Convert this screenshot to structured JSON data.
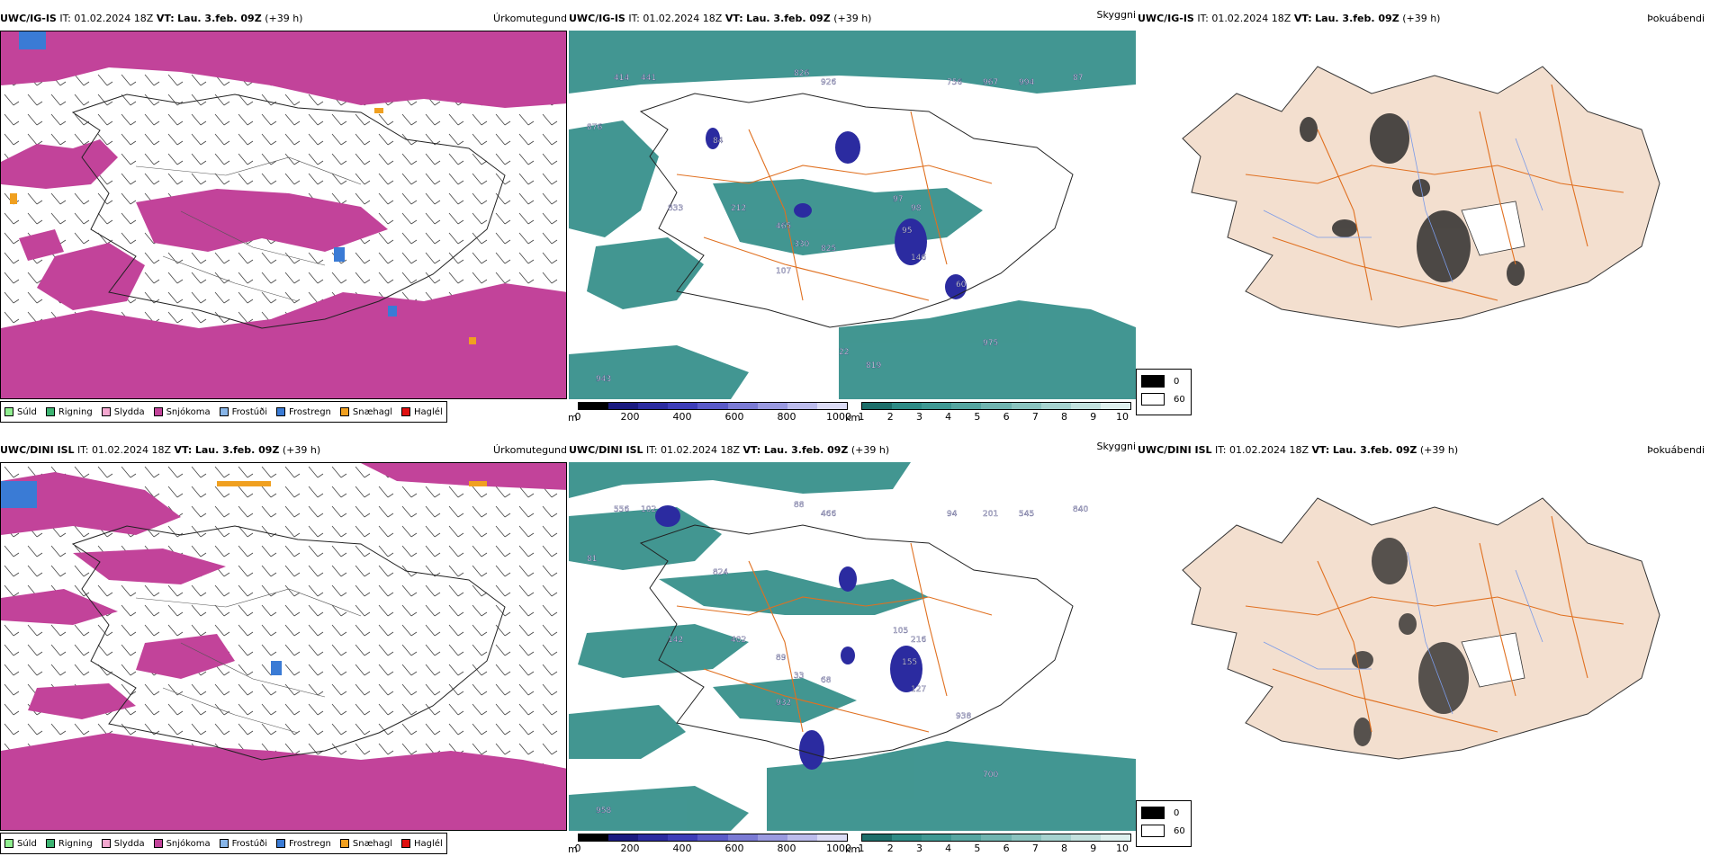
{
  "rows": [
    {
      "precip": {
        "model": "UWC/IG-IS",
        "it": "IT: 01.02.2024 18Z",
        "vt_label": "VT:",
        "vt_value": "Lau. 3.feb. 09Z",
        "offset": "(+39 h)",
        "title": "Úrkomutegund"
      },
      "cloud": {
        "model": "UWC/IG-IS",
        "it": "IT: 01.02.2024 18Z",
        "vt_label": "VT:",
        "vt_value": "Lau. 3.feb. 09Z",
        "offset": "(+39 h)",
        "title": "Skyggni"
      },
      "fog": {
        "model": "UWC/IG-IS",
        "it": "IT: 01.02.2024 18Z",
        "vt_label": "VT:",
        "vt_value": "Lau. 3.feb. 09Z",
        "offset": "(+39 h)",
        "title": "Þokuábendi"
      },
      "labels": [
        "414",
        "441",
        "826",
        "926",
        "756",
        "967",
        "994",
        "87",
        "84",
        "876",
        "833",
        "212",
        "465",
        "330",
        "825",
        "107",
        "97",
        "98",
        "95",
        "146",
        "60",
        "975",
        "943",
        "22",
        "819"
      ]
    },
    {
      "precip": {
        "model": "UWC/DINI ISL",
        "it": "IT: 01.02.2024 18Z",
        "vt_label": "VT:",
        "vt_value": "Lau. 3.feb. 09Z",
        "offset": "(+39 h)",
        "title": "Úrkomutegund"
      },
      "cloud": {
        "model": "UWC/DINI ISL",
        "it": "IT: 01.02.2024 18Z",
        "vt_label": "VT:",
        "vt_value": "Lau. 3.feb. 09Z",
        "offset": "(+39 h)",
        "title": "Skyggni"
      },
      "fog": {
        "model": "UWC/DINI ISL",
        "it": "IT: 01.02.2024 18Z",
        "vt_label": "VT:",
        "vt_value": "Lau. 3.feb. 09Z",
        "offset": "(+39 h)",
        "title": "Þokuábendi"
      },
      "labels": [
        "556",
        "102",
        "88",
        "466",
        "94",
        "201",
        "545",
        "840",
        "824",
        "81",
        "142",
        "402",
        "89",
        "33",
        "68",
        "932",
        "105",
        "216",
        "155",
        "127",
        "938",
        "700",
        "958"
      ]
    }
  ],
  "precip_legend": [
    {
      "label": "Súld",
      "color": "#90ee90"
    },
    {
      "label": "Rigning",
      "color": "#3cb371"
    },
    {
      "label": "Slydda",
      "color": "#f4a8d0"
    },
    {
      "label": "Snjókoma",
      "color": "#c2439a"
    },
    {
      "label": "Frostúði",
      "color": "#87b5e8"
    },
    {
      "label": "Frostregn",
      "color": "#3a7bd5"
    },
    {
      "label": "Snæhagl",
      "color": "#f0a020"
    },
    {
      "label": "Haglél",
      "color": "#e01010"
    }
  ],
  "height_scale": {
    "unit": "m",
    "ticks": [
      "0",
      "200",
      "400",
      "600",
      "800",
      "1000"
    ]
  },
  "vis_scale": {
    "unit": "km",
    "ticks": [
      "1",
      "2",
      "3",
      "4",
      "5",
      "6",
      "7",
      "8",
      "9",
      "10"
    ]
  },
  "fog_legend": [
    {
      "label": "0",
      "color": "#000000"
    },
    {
      "label": "60",
      "color": "#ffffff"
    }
  ],
  "colors": {
    "snow": "#c2439a",
    "cloud": "#2e8b86",
    "high": "#2b2ba0",
    "land": "#f3dfcf",
    "road": "#e07020",
    "river": "#7a9ae8"
  }
}
